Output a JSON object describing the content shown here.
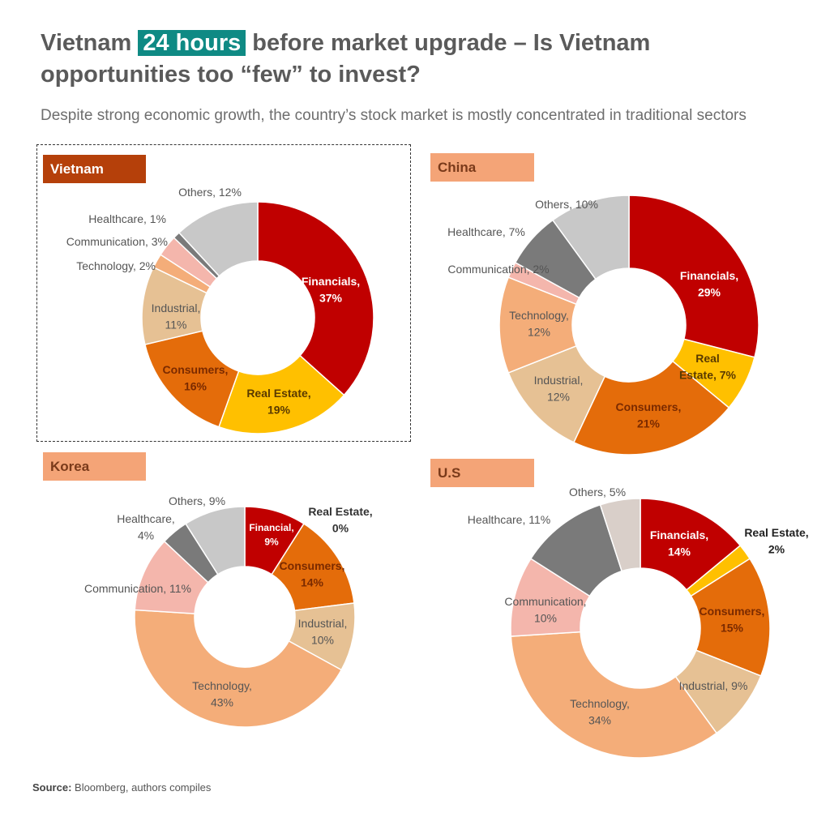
{
  "title": {
    "before": "Vietnam ",
    "highlight": "24 hours",
    "after": " before market upgrade – Is Vietnam opportunities too “few” to invest?"
  },
  "subtitle": "Despite strong economic growth, the country’s stock market is mostly concentrated in traditional sectors",
  "source": {
    "label": "Source:",
    "text": " Bloomberg, authors compiles"
  },
  "colors": {
    "financials": "#c00000",
    "real_estate": "#ffc000",
    "consumers": "#e46c0a",
    "industrial": "#e6c194",
    "technology": "#f4ad79",
    "communication": "#f4b6ac",
    "healthcare": "#7a7a7a",
    "others": "#c8c8c8",
    "others_us": "#d9cfc9"
  },
  "chart_data": [
    {
      "type": "pie",
      "country": "Vietnam",
      "categories": [
        "Financials",
        "Real Estate",
        "Consumers",
        "Industrial",
        "Technology",
        "Communication",
        "Healthcare",
        "Others"
      ],
      "values": [
        37,
        19,
        16,
        11,
        2,
        3,
        1,
        12
      ],
      "labels": [
        "Financials,\n37%",
        "Real Estate,\n19%",
        "Consumers,\n16%",
        "Industrial,\n11%",
        "Technology, 2%",
        "Communication, 3%",
        "Healthcare, 1%",
        "Others, 12%"
      ]
    },
    {
      "type": "pie",
      "country": "China",
      "categories": [
        "Financials",
        "Real Estate",
        "Consumers",
        "Industrial",
        "Technology",
        "Communication",
        "Healthcare",
        "Others"
      ],
      "values": [
        29,
        7,
        21,
        12,
        12,
        2,
        7,
        10
      ],
      "labels": [
        "Financials,\n29%",
        "Real\nEstate, 7%",
        "Consumers,\n21%",
        "Industrial,\n12%",
        "Technology,\n12%",
        "Communication, 2%",
        "Healthcare, 7%",
        "Others, 10%"
      ]
    },
    {
      "type": "pie",
      "country": "Korea",
      "categories": [
        "Financial",
        "Real Estate",
        "Consumers",
        "Industrial",
        "Technology",
        "Communication",
        "Healthcare",
        "Others"
      ],
      "values": [
        9,
        0,
        14,
        10,
        43,
        11,
        4,
        9
      ],
      "labels": [
        "Financial,\n9%",
        "Real Estate,\n0%",
        "Consumers,\n14%",
        "Industrial,\n10%",
        "Technology,\n43%",
        "Communication, 11%",
        "Healthcare,\n4%",
        "Others, 9%"
      ]
    },
    {
      "type": "pie",
      "country": "U.S",
      "categories": [
        "Financials",
        "Real Estate",
        "Consumers",
        "Industrial",
        "Technology",
        "Communication",
        "Healthcare",
        "Others"
      ],
      "values": [
        14,
        2,
        15,
        9,
        34,
        10,
        11,
        5
      ],
      "labels": [
        "Financials,\n14%",
        "Real Estate,\n2%",
        "Consumers,\n15%",
        "Industrial, 9%",
        "Technology,\n34%",
        "Communication,\n10%",
        "Healthcare, 11%",
        "Others, 5%"
      ]
    }
  ]
}
